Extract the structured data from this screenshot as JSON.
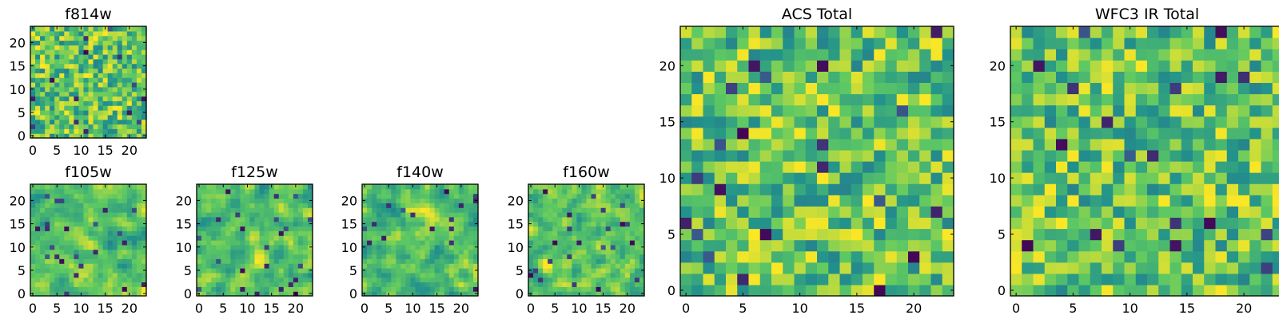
{
  "colors": {
    "background": "#ffffff",
    "axes": "#000000",
    "colormap": "viridis",
    "colormap_stops": [
      "#440154",
      "#3b528b",
      "#21918c",
      "#5ec962",
      "#fde725"
    ]
  },
  "chart_data": [
    {
      "type": "heatmap",
      "title": "f814w",
      "grid_size": [
        24,
        24
      ],
      "xlim": [
        -0.5,
        23.5
      ],
      "ylim": [
        -0.5,
        23.5
      ],
      "origin": "lower",
      "x_ticks": [
        0,
        5,
        10,
        15,
        20
      ],
      "y_ticks": [
        0,
        5,
        10,
        15,
        20
      ],
      "x_tick_labels": [
        "0",
        "5",
        "10",
        "15",
        "20"
      ],
      "y_tick_labels": [
        "0",
        "5",
        "10",
        "15",
        "20"
      ],
      "colormap": "viridis",
      "texture": "fine noise",
      "values_note": "24x24 noise image; individual pixel values not labeled"
    },
    {
      "type": "heatmap",
      "title": "f105w",
      "grid_size": [
        24,
        24
      ],
      "xlim": [
        -0.5,
        23.5
      ],
      "ylim": [
        -0.5,
        23.5
      ],
      "origin": "lower",
      "x_ticks": [
        0,
        5,
        10,
        15,
        20
      ],
      "y_ticks": [
        0,
        5,
        10,
        15,
        20
      ],
      "x_tick_labels": [
        "0",
        "5",
        "10",
        "15",
        "20"
      ],
      "y_tick_labels": [
        "0",
        "5",
        "10",
        "15",
        "20"
      ],
      "colormap": "viridis",
      "texture": "smoothed noise",
      "values_note": "24x24 correlated noise image; individual pixel values not labeled"
    },
    {
      "type": "heatmap",
      "title": "f125w",
      "grid_size": [
        24,
        24
      ],
      "xlim": [
        -0.5,
        23.5
      ],
      "ylim": [
        -0.5,
        23.5
      ],
      "origin": "lower",
      "x_ticks": [
        0,
        5,
        10,
        15,
        20
      ],
      "y_ticks": [
        0,
        5,
        10,
        15,
        20
      ],
      "x_tick_labels": [
        "0",
        "5",
        "10",
        "15",
        "20"
      ],
      "y_tick_labels": [
        "0",
        "5",
        "10",
        "15",
        "20"
      ],
      "colormap": "viridis",
      "texture": "smoothed noise",
      "values_note": "24x24 correlated noise image; individual pixel values not labeled"
    },
    {
      "type": "heatmap",
      "title": "f140w",
      "grid_size": [
        24,
        24
      ],
      "xlim": [
        -0.5,
        23.5
      ],
      "ylim": [
        -0.5,
        23.5
      ],
      "origin": "lower",
      "x_ticks": [
        0,
        5,
        10,
        15,
        20
      ],
      "y_ticks": [
        0,
        5,
        10,
        15,
        20
      ],
      "x_tick_labels": [
        "0",
        "5",
        "10",
        "15",
        "20"
      ],
      "y_tick_labels": [
        "0",
        "5",
        "10",
        "15",
        "20"
      ],
      "colormap": "viridis",
      "texture": "smoothed noise",
      "values_note": "24x24 correlated noise image; individual pixel values not labeled"
    },
    {
      "type": "heatmap",
      "title": "f160w",
      "grid_size": [
        24,
        24
      ],
      "xlim": [
        -0.5,
        23.5
      ],
      "ylim": [
        -0.5,
        23.5
      ],
      "origin": "lower",
      "x_ticks": [
        0,
        5,
        10,
        15,
        20
      ],
      "y_ticks": [
        0,
        5,
        10,
        15,
        20
      ],
      "x_tick_labels": [
        "0",
        "5",
        "10",
        "15",
        "20"
      ],
      "y_tick_labels": [
        "0",
        "5",
        "10",
        "15",
        "20"
      ],
      "colormap": "viridis",
      "texture": "smoothed noise",
      "values_note": "24x24 correlated noise image; individual pixel values not labeled"
    },
    {
      "type": "heatmap",
      "title": "ACS Total",
      "grid_size": [
        24,
        24
      ],
      "xlim": [
        -0.5,
        23.5
      ],
      "ylim": [
        -0.5,
        23.5
      ],
      "origin": "lower",
      "x_ticks": [
        0,
        5,
        10,
        15,
        20
      ],
      "y_ticks": [
        0,
        5,
        10,
        15,
        20
      ],
      "x_tick_labels": [
        "0",
        "5",
        "10",
        "15",
        "20"
      ],
      "y_tick_labels": [
        "0",
        "5",
        "10",
        "15",
        "20"
      ],
      "colormap": "viridis",
      "texture": "coarse noise",
      "values_note": "24x24 noise image; individual pixel values not labeled"
    },
    {
      "type": "heatmap",
      "title": "WFC3 IR Total",
      "grid_size": [
        24,
        24
      ],
      "xlim": [
        -0.5,
        23.5
      ],
      "ylim": [
        -0.5,
        23.5
      ],
      "origin": "lower",
      "x_ticks": [
        0,
        5,
        10,
        15,
        20
      ],
      "y_ticks": [
        0,
        5,
        10,
        15,
        20
      ],
      "x_tick_labels": [
        "0",
        "5",
        "10",
        "15",
        "20"
      ],
      "y_tick_labels": [
        "0",
        "5",
        "10",
        "15",
        "20"
      ],
      "colormap": "viridis",
      "texture": "coarse noise",
      "values_note": "24x24 noise image; individual pixel values not labeled"
    }
  ]
}
